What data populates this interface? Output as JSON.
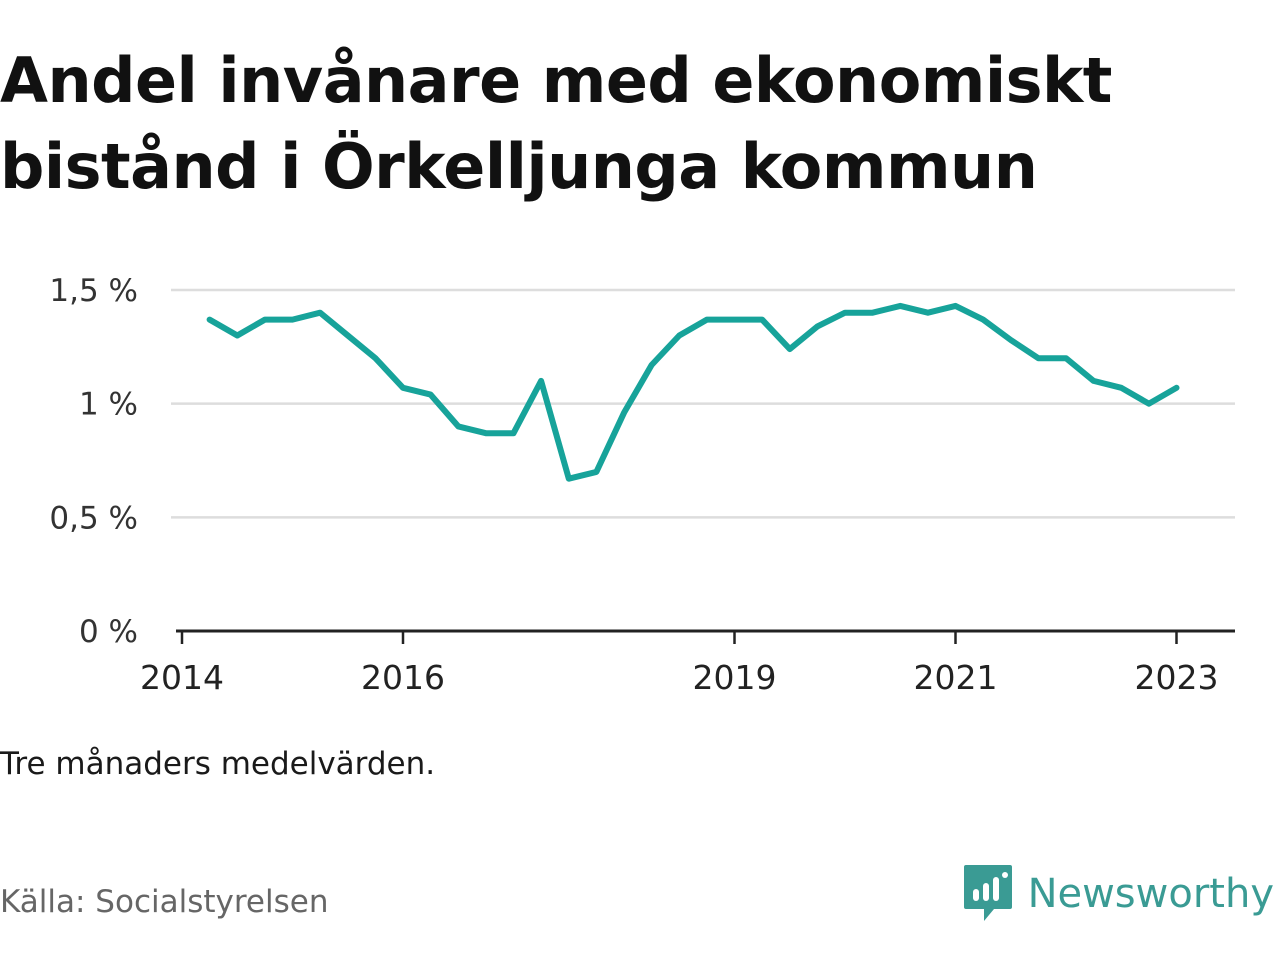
{
  "title_line1": "Andel invånare med ekonomiskt",
  "title_line2": "bistånd i Örkelljunga kommun",
  "note": "Tre månaders medelvärden.",
  "source": "Källa: Socialstyrelsen",
  "brand": "Newsworthy",
  "colors": {
    "line": "#17a39a",
    "grid": "#dddddd",
    "axis": "#222222",
    "brand": "#3a9b94"
  },
  "chart_data": {
    "type": "line",
    "ylim": [
      0,
      1.5
    ],
    "yticks": [
      0,
      0.5,
      1,
      1.5
    ],
    "ytick_labels": [
      "0 %",
      "0,5 %",
      "1 %",
      "1,5 %"
    ],
    "xlim": [
      2014.0,
      2023.5
    ],
    "xticks": [
      2014,
      2016,
      2019,
      2021,
      2023
    ],
    "xtick_labels": [
      "2014",
      "2016",
      "2019",
      "2021",
      "2023"
    ],
    "grid": true,
    "series": [
      {
        "x": [
          2014.25,
          2014.5,
          2014.75,
          2015.0,
          2015.25,
          2015.5,
          2015.75,
          2016.0,
          2016.25,
          2016.5,
          2016.75,
          2017.0,
          2017.25,
          2017.5,
          2017.75,
          2018.0,
          2018.25,
          2018.5,
          2018.75,
          2019.0,
          2019.25,
          2019.5,
          2019.75,
          2020.0,
          2020.25,
          2020.5,
          2020.75,
          2021.0,
          2021.25,
          2021.5,
          2021.75,
          2022.0,
          2022.25,
          2022.5,
          2022.75,
          2023.0
        ],
        "values": [
          1.37,
          1.3,
          1.37,
          1.37,
          1.4,
          1.3,
          1.2,
          1.07,
          1.04,
          0.9,
          0.87,
          0.87,
          1.1,
          0.67,
          0.7,
          0.96,
          1.17,
          1.3,
          1.37,
          1.37,
          1.37,
          1.24,
          1.34,
          1.4,
          1.4,
          1.43,
          1.4,
          1.43,
          1.37,
          1.28,
          1.2,
          1.2,
          1.1,
          1.07,
          1.0,
          1.07
        ]
      }
    ]
  }
}
